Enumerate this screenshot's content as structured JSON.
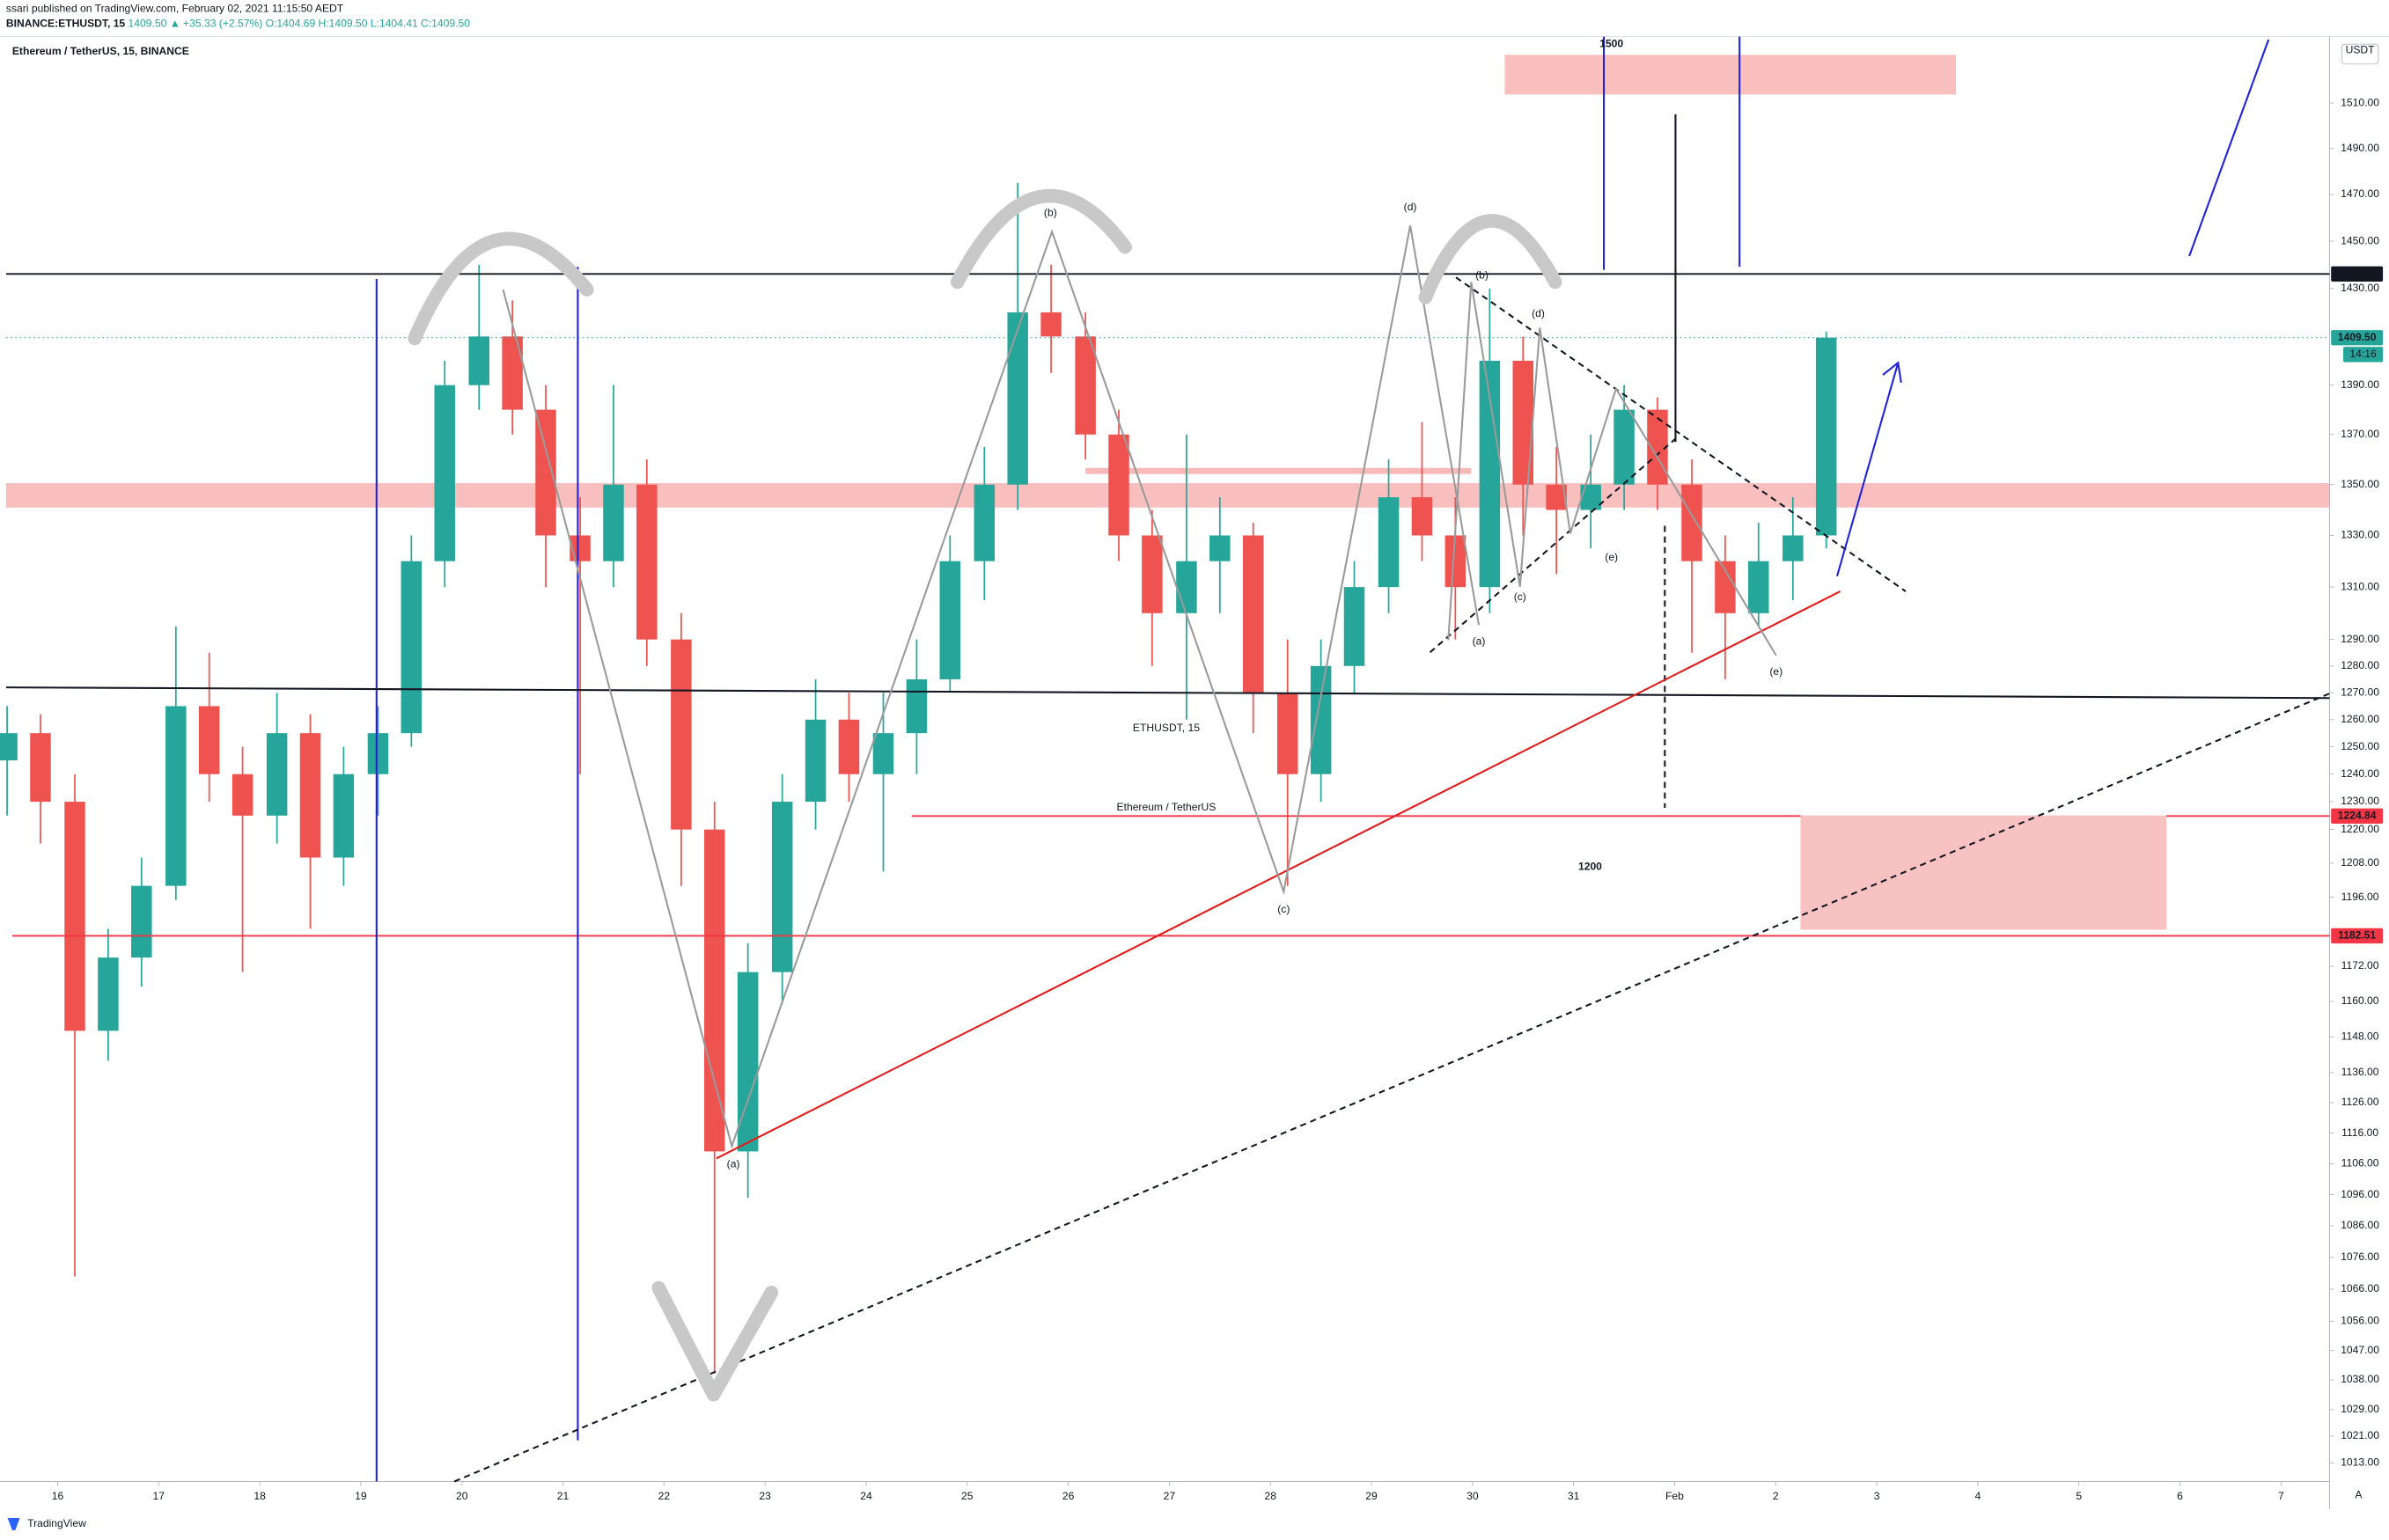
{
  "header": {
    "published": "ssari published on TradingView.com, February 02, 2021 11:15:50 AEDT",
    "symbol": "BINANCE:ETHUSDT, 15",
    "last": "1409.50",
    "change": "▲ +35.33 (+2.57%)",
    "ohlc": "O:1404.69 H:1409.50 L:1404.41 C:1409.50"
  },
  "chart_data": {
    "type": "candlestick",
    "title": "Ethereum / TetherUS, 15, BINANCE",
    "watermark": "ETHUSDT, 15",
    "watermark_sub": "Ethereum / TetherUS",
    "currency": "USDT",
    "log_scale": true,
    "grid": false,
    "up_color": "#26a69a",
    "down_color": "#ef5350",
    "x": [
      15.5,
      15.83,
      16.17,
      16.5,
      16.83,
      17.17,
      17.5,
      17.83,
      18.17,
      18.5,
      18.83,
      19.17,
      19.5,
      19.83,
      20.17,
      20.5,
      20.83,
      21.17,
      21.5,
      21.83,
      22.17,
      22.5,
      22.83,
      23.17,
      23.5,
      23.83,
      24.17,
      24.5,
      24.83,
      25.17,
      25.5,
      25.83,
      26.17,
      26.5,
      26.83,
      27.17,
      27.5,
      27.83,
      28.17,
      28.5,
      28.83,
      29.17,
      29.5,
      29.83,
      30.17,
      30.5,
      30.83,
      31.17,
      31.5,
      31.83,
      32.17,
      32.5,
      32.83,
      33.17,
      33.5
    ],
    "open": [
      1245,
      1255,
      1230,
      1150,
      1175,
      1200,
      1265,
      1240,
      1225,
      1255,
      1210,
      1240,
      1255,
      1320,
      1390,
      1410,
      1380,
      1330,
      1320,
      1350,
      1290,
      1220,
      1110,
      1170,
      1230,
      1260,
      1240,
      1255,
      1275,
      1320,
      1350,
      1420,
      1410,
      1370,
      1330,
      1300,
      1320,
      1330,
      1270,
      1240,
      1280,
      1310,
      1345,
      1330,
      1310,
      1400,
      1350,
      1340,
      1350,
      1380,
      1350,
      1320,
      1300,
      1320,
      1330
    ],
    "high": [
      1265,
      1262,
      1240,
      1185,
      1210,
      1295,
      1285,
      1250,
      1270,
      1262,
      1250,
      1265,
      1330,
      1400,
      1440,
      1425,
      1390,
      1345,
      1390,
      1360,
      1300,
      1230,
      1180,
      1240,
      1275,
      1270,
      1270,
      1290,
      1330,
      1365,
      1475,
      1440,
      1420,
      1380,
      1340,
      1370,
      1345,
      1335,
      1290,
      1290,
      1320,
      1360,
      1375,
      1345,
      1430,
      1410,
      1365,
      1370,
      1390,
      1385,
      1360,
      1330,
      1335,
      1345,
      1412
    ],
    "low": [
      1225,
      1215,
      1070,
      1140,
      1165,
      1195,
      1230,
      1170,
      1215,
      1185,
      1200,
      1225,
      1250,
      1310,
      1380,
      1370,
      1310,
      1240,
      1310,
      1280,
      1200,
      1040,
      1095,
      1160,
      1220,
      1230,
      1205,
      1240,
      1270,
      1305,
      1340,
      1395,
      1360,
      1320,
      1280,
      1260,
      1300,
      1255,
      1200,
      1230,
      1270,
      1300,
      1320,
      1290,
      1300,
      1330,
      1315,
      1325,
      1340,
      1340,
      1285,
      1275,
      1295,
      1305,
      1325
    ],
    "close": [
      1255,
      1230,
      1150,
      1175,
      1200,
      1265,
      1240,
      1225,
      1255,
      1210,
      1240,
      1255,
      1320,
      1390,
      1410,
      1380,
      1330,
      1320,
      1350,
      1290,
      1220,
      1110,
      1170,
      1230,
      1260,
      1240,
      1255,
      1275,
      1320,
      1350,
      1420,
      1410,
      1370,
      1330,
      1300,
      1320,
      1330,
      1270,
      1240,
      1280,
      1310,
      1345,
      1330,
      1310,
      1400,
      1350,
      1340,
      1350,
      1380,
      1350,
      1320,
      1300,
      1320,
      1330,
      1409.5
    ],
    "xlim": [
      15.49,
      38.48
    ],
    "xticks": [
      16,
      17,
      18,
      19,
      20,
      21,
      22,
      23,
      24,
      25,
      26,
      27,
      28,
      29,
      30,
      31,
      {
        "value": 32,
        "label": "Feb"
      },
      {
        "value": 33,
        "label": "2"
      },
      {
        "value": 34,
        "label": "3"
      },
      {
        "value": 35,
        "label": "4"
      },
      {
        "value": 36,
        "label": "5"
      },
      {
        "value": 37,
        "label": "6"
      },
      {
        "value": 38,
        "label": "7"
      }
    ],
    "ylim": [
      1007.5,
      1537
    ],
    "yticks": [
      {
        "value": 1510,
        "label": "1510.00"
      },
      {
        "value": 1490,
        "label": "1490.00"
      },
      {
        "value": 1470,
        "label": "1470.00"
      },
      {
        "value": 1450,
        "label": "1450.00"
      },
      {
        "value": 1430,
        "label": "1430.00"
      },
      {
        "value": 1390,
        "label": "1390.00"
      },
      {
        "value": 1370,
        "label": "1370.00"
      },
      {
        "value": 1350,
        "label": "1350.00"
      },
      {
        "value": 1330,
        "label": "1330.00"
      },
      {
        "value": 1310,
        "label": "1310.00"
      },
      {
        "value": 1290,
        "label": "1290.00"
      },
      {
        "value": 1280,
        "label": "1280.00"
      },
      {
        "value": 1270,
        "label": "1270.00"
      },
      {
        "value": 1260,
        "label": "1260.00"
      },
      {
        "value": 1250,
        "label": "1250.00"
      },
      {
        "value": 1240,
        "label": "1240.00"
      },
      {
        "value": 1230,
        "label": "1230.00"
      },
      {
        "value": 1220,
        "label": "1220.00"
      },
      {
        "value": 1208,
        "label": "1208.00"
      },
      {
        "value": 1196,
        "label": "1196.00"
      },
      {
        "value": 1172,
        "label": "1172.00"
      },
      {
        "value": 1160,
        "label": "1160.00"
      },
      {
        "value": 1148,
        "label": "1148.00"
      },
      {
        "value": 1136,
        "label": "1136.00"
      },
      {
        "value": 1126,
        "label": "1126.00"
      },
      {
        "value": 1116,
        "label": "1116.00"
      },
      {
        "value": 1106,
        "label": "1106.00"
      },
      {
        "value": 1096,
        "label": "1096.00"
      },
      {
        "value": 1086,
        "label": "1086.00"
      },
      {
        "value": 1076,
        "label": "1076.00"
      },
      {
        "value": 1066,
        "label": "1066.00"
      },
      {
        "value": 1056,
        "label": "1056.00"
      },
      {
        "value": 1047,
        "label": "1047.00"
      },
      {
        "value": 1038,
        "label": "1038.00"
      },
      {
        "value": 1029,
        "label": "1029.00"
      },
      {
        "value": 1021,
        "label": "1021.00"
      },
      {
        "value": 1013,
        "label": "1013.00"
      }
    ],
    "price_lines": [
      {
        "value": 1436.12,
        "color": "#131722"
      },
      {
        "value": 1409.5,
        "label": "1409.50",
        "color": "#26a69a"
      },
      {
        "value": 1224.84,
        "color": "#f23645"
      },
      {
        "value": 1182.51,
        "color": "#f23645"
      }
    ],
    "countdown": "14:16",
    "annotations": [
      "1500",
      "1200",
      "(b)",
      "(d)",
      "(b)",
      "(d)",
      "(e)",
      "(c)",
      "(a)",
      "(e)",
      "(c)",
      "(a)"
    ]
  },
  "footer": {
    "brand": "TradingView",
    "scale_mode": "A"
  }
}
